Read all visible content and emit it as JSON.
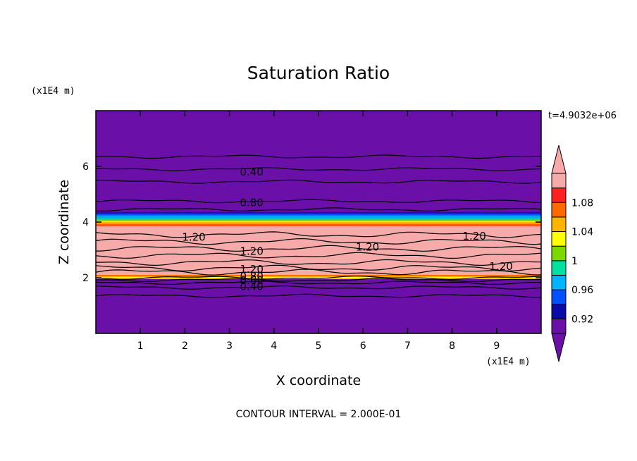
{
  "chart_data": {
    "type": "contour",
    "title": "Saturation Ratio",
    "xlabel": "X coordinate",
    "ylabel": "Z coordinate",
    "x_units": "(x1E4 m)",
    "y_units": "(x1E4 m)",
    "time_label": "t=4.9032e+06",
    "footer": "CONTOUR INTERVAL = 2.000E-01",
    "xlim": [
      0,
      10
    ],
    "ylim": [
      0,
      8
    ],
    "x_ticks": [
      "1",
      "2",
      "3",
      "4",
      "5",
      "6",
      "7",
      "8",
      "9"
    ],
    "y_ticks": [
      "2",
      "4",
      "6"
    ],
    "grid": false,
    "colorbar": {
      "position": "right",
      "extend": "both",
      "levels": [
        0.9,
        0.92,
        0.94,
        0.96,
        0.98,
        1.0,
        1.02,
        1.04,
        1.06,
        1.08,
        1.1
      ],
      "tick_labels": [
        "0.92",
        "0.96",
        "1",
        "1.04",
        "1.08"
      ],
      "colors": [
        "#6a0fa8",
        "#0a0aa8",
        "#0050ff",
        "#00b4ff",
        "#00e2a0",
        "#7bd800",
        "#ffff00",
        "#ffb400",
        "#ff6a00",
        "#ff2020",
        "#f6aaaa"
      ]
    },
    "fill_bands": [
      {
        "z_range": [
          0,
          1.95
        ],
        "color_value": "below 0.9"
      },
      {
        "z_range": [
          1.95,
          2.1
        ],
        "color_value": "1.02 - 1.06"
      },
      {
        "z_range": [
          2.1,
          3.85
        ],
        "color_value": "above 1.1"
      },
      {
        "z_range": [
          3.85,
          4.05
        ],
        "color_value": "1.06 - 1.1"
      },
      {
        "z_range": [
          4.05,
          4.35
        ],
        "color_value": "0.92 - 1.0"
      },
      {
        "z_range": [
          4.35,
          8
        ],
        "color_value": "below 0.9"
      }
    ],
    "contour_labels": [
      {
        "text": "0.40",
        "x": 3.5,
        "z": 5.8
      },
      {
        "text": "0.80",
        "x": 3.5,
        "z": 4.7
      },
      {
        "text": "1.20",
        "x": 2.2,
        "z": 3.45
      },
      {
        "text": "1.20",
        "x": 3.5,
        "z": 2.95
      },
      {
        "text": "1.20",
        "x": 6.1,
        "z": 3.1
      },
      {
        "text": "1.20",
        "x": 8.5,
        "z": 3.5
      },
      {
        "text": "1.20",
        "x": 9.1,
        "z": 2.4
      },
      {
        "text": "1.20",
        "x": 3.5,
        "z": 2.3
      },
      {
        "text": "0.80",
        "x": 3.5,
        "z": 2.05
      },
      {
        "text": "0.60",
        "x": 3.5,
        "z": 1.9
      },
      {
        "text": "0.40",
        "x": 3.5,
        "z": 1.68
      }
    ],
    "contour_lines_z": [
      1.35,
      1.65,
      1.82,
      1.92,
      2.0,
      4.45,
      4.75,
      5.45,
      5.9,
      6.35
    ],
    "interior_contour_lines_z": [
      2.2,
      2.35,
      2.55,
      2.8,
      3.05,
      3.3,
      3.55
    ]
  }
}
